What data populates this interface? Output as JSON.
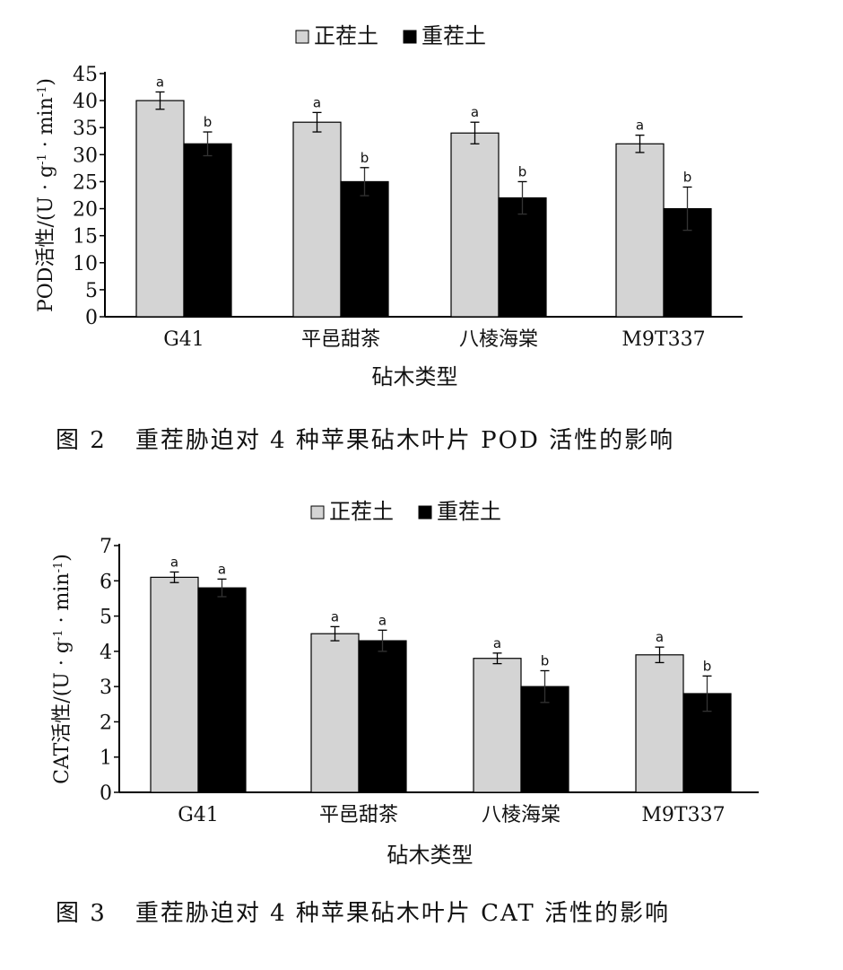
{
  "figures": [
    {
      "caption_number": "图 2",
      "caption_text": "重茬胁迫对 4 种苹果砧木叶片 POD 活性的影响"
    },
    {
      "caption_number": "图 3",
      "caption_text": "重茬胁迫对 4 种苹果砧木叶片 CAT 活性的影响"
    }
  ],
  "chart_data": [
    {
      "type": "bar",
      "categories": [
        "G41",
        "平邑甜茶",
        "八棱海棠",
        "M9T337"
      ],
      "series": [
        {
          "name": "正茬土",
          "color": "#d4d4d4",
          "values": [
            40,
            36,
            34,
            32
          ],
          "errors": [
            1.6,
            1.8,
            2.0,
            1.6
          ],
          "labels": [
            "a",
            "a",
            "a",
            "a"
          ]
        },
        {
          "name": "重茬土",
          "color": "#000000",
          "values": [
            32,
            25,
            22,
            20
          ],
          "errors": [
            2.2,
            2.6,
            3.0,
            4.0
          ],
          "labels": [
            "b",
            "b",
            "b",
            "b"
          ]
        }
      ],
      "xlabel": "砧木类型",
      "ylabel": "POD活性/(U · g-1 · min-1)",
      "ylabel_parts": {
        "main": "POD活性/(U · g",
        "sup1": "-1",
        "mid": " · min",
        "sup2": "-1",
        "end": ")"
      },
      "ylim": [
        0,
        45
      ],
      "yticks": [
        0,
        5,
        10,
        15,
        20,
        25,
        30,
        35,
        40,
        45
      ],
      "legend_position": "top"
    },
    {
      "type": "bar",
      "categories": [
        "G41",
        "平邑甜茶",
        "八棱海棠",
        "M9T337"
      ],
      "series": [
        {
          "name": "正茬土",
          "color": "#d4d4d4",
          "values": [
            6.1,
            4.5,
            3.8,
            3.9
          ],
          "errors": [
            0.15,
            0.2,
            0.15,
            0.22
          ],
          "labels": [
            "a",
            "a",
            "a",
            "a"
          ]
        },
        {
          "name": "重茬土",
          "color": "#000000",
          "values": [
            5.8,
            4.3,
            3.0,
            2.8
          ],
          "errors": [
            0.25,
            0.3,
            0.45,
            0.5
          ],
          "labels": [
            "a",
            "a",
            "b",
            "b"
          ]
        }
      ],
      "xlabel": "砧木类型",
      "ylabel": "CAT活性/(U · g-1 · min-1)",
      "ylabel_parts": {
        "main": "CAT活性/(U · g",
        "sup1": "-1",
        "mid": " · min",
        "sup2": "-1",
        "end": ")"
      },
      "ylim": [
        0,
        7
      ],
      "yticks": [
        0,
        1,
        2,
        3,
        4,
        5,
        6,
        7
      ],
      "legend_position": "top"
    }
  ]
}
